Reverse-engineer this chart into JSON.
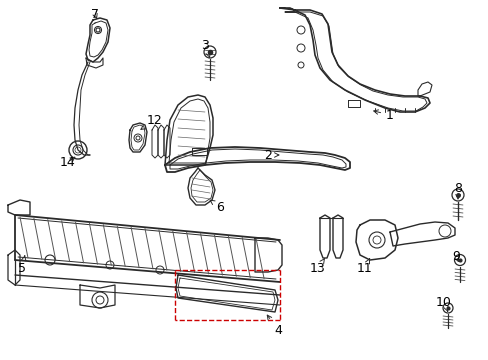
{
  "background_color": "#ffffff",
  "line_color": "#2a2a2a",
  "red_color": "#cc0000",
  "label_color": "#000000",
  "fig_width": 4.89,
  "fig_height": 3.6,
  "dpi": 100
}
